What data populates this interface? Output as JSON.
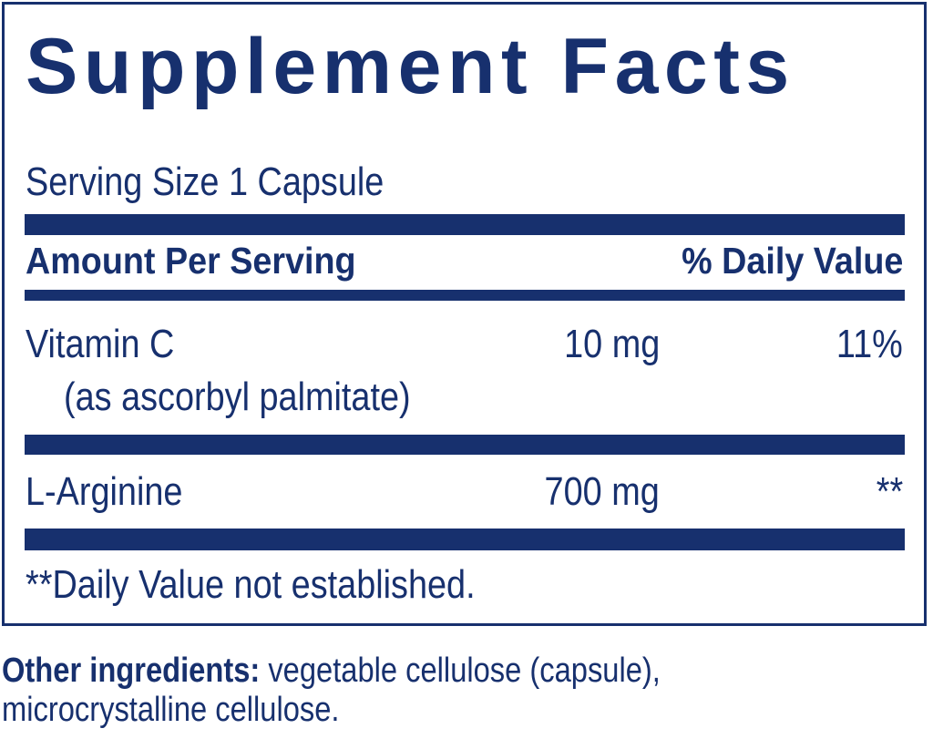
{
  "title": "Supplement Facts",
  "serving_size": "Serving Size 1 Capsule",
  "header": {
    "amount": "Amount Per Serving",
    "dv": "% Daily Value"
  },
  "rows": [
    {
      "name": "Vitamin C",
      "sub": "(as ascorbyl palmitate)",
      "amount": "10 mg",
      "dv": "11%"
    },
    {
      "name": "L-Arginine",
      "amount": "700 mg",
      "dv": "**"
    }
  ],
  "footnote": "**Daily Value not established.",
  "other_ingredients": {
    "label": "Other ingredients:",
    "line1": " vegetable cellulose (capsule),",
    "line2": "microcrystalline cellulose."
  },
  "colors": {
    "ink": "#17306e",
    "background": "#ffffff"
  }
}
